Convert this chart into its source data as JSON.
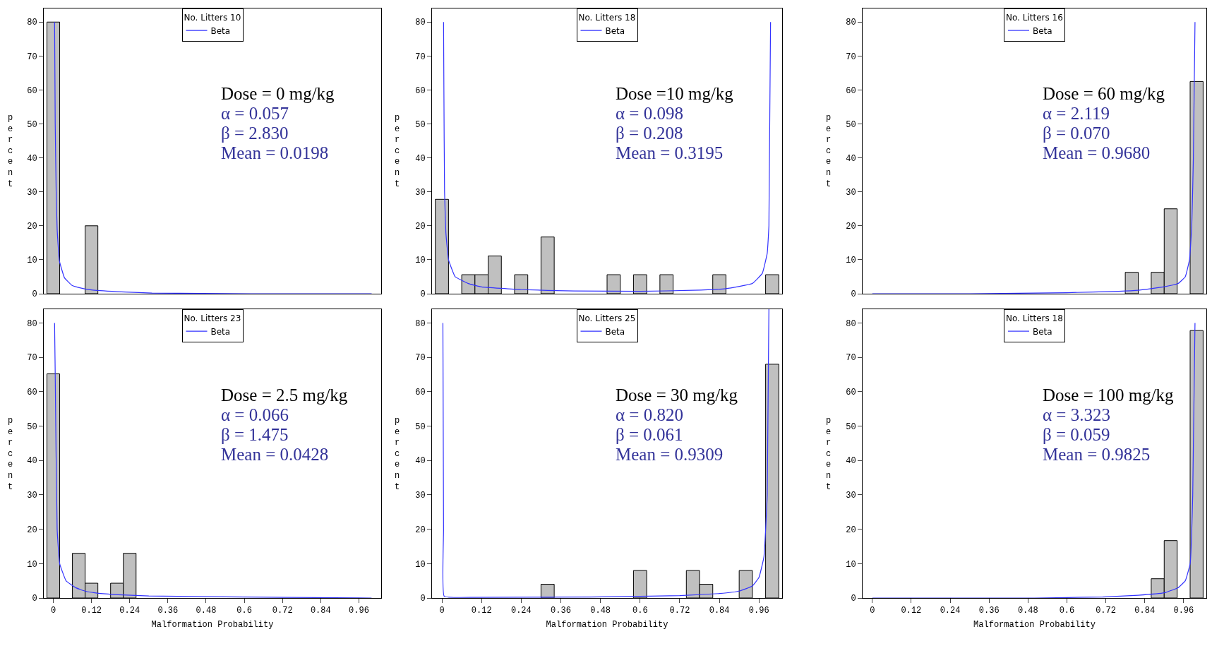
{
  "chart_data": [
    {
      "type": "histogram",
      "legend_title": "No. Litters 10",
      "legend": "top",
      "ylabel": "percent",
      "tick_labels": "y",
      "grid": false,
      "annotations": [
        "Dose = 0 mg/kg",
        "α = 0.057",
        "β = 2.830",
        "Mean = 0.0198"
      ],
      "bins": [
        -0.02,
        0.02,
        0.06,
        0.1,
        0.14,
        0.18,
        0.22,
        0.26,
        0.3,
        0.34,
        0.38,
        0.42,
        0.46,
        0.5,
        0.54,
        0.58,
        0.62,
        0.66,
        0.7,
        0.74,
        0.78,
        0.82,
        0.86,
        0.9,
        0.94,
        0.98,
        1.02
      ],
      "xlim": [
        -0.03,
        1.03
      ],
      "ylim": [
        0,
        84
      ],
      "yticks": [
        0,
        10,
        20,
        30,
        40,
        50,
        60,
        70,
        80
      ],
      "series": [
        {
          "type": "histogram",
          "color": "#c0c0c0",
          "values": [
            80,
            0,
            0,
            20,
            0,
            0,
            0,
            0,
            0,
            0,
            0,
            0,
            0,
            0,
            0,
            0,
            0,
            0,
            0,
            0,
            0,
            0,
            0,
            0,
            0,
            0
          ]
        },
        {
          "type": "line",
          "name": "Beta",
          "color": "#3333ff",
          "x": [
            0.004,
            0.006,
            0.009,
            0.012,
            0.019,
            0.035,
            0.058,
            0.081,
            0.12,
            0.2,
            0.31,
            0.47,
            0.62,
            0.8,
            1.0
          ],
          "values": [
            80,
            50,
            30,
            19,
            9.7,
            4.7,
            2.5,
            1.8,
            1.1,
            0.6,
            0.2,
            0.1,
            0,
            0,
            0
          ]
        }
      ]
    },
    {
      "type": "histogram",
      "legend_title": "No. Litters 18",
      "legend": "top",
      "ylabel": "percent",
      "tick_labels": "y",
      "grid": false,
      "annotations": [
        "Dose =10 mg/kg",
        "α = 0.098",
        "β = 0.208",
        "Mean = 0.3195"
      ],
      "bins": [
        -0.02,
        0.02,
        0.06,
        0.1,
        0.14,
        0.18,
        0.22,
        0.26,
        0.3,
        0.34,
        0.38,
        0.42,
        0.46,
        0.5,
        0.54,
        0.58,
        0.62,
        0.66,
        0.7,
        0.74,
        0.78,
        0.82,
        0.86,
        0.9,
        0.94,
        0.98,
        1.02
      ],
      "xlim": [
        -0.03,
        1.03
      ],
      "ylim": [
        0,
        84
      ],
      "yticks": [
        0,
        10,
        20,
        30,
        40,
        50,
        60,
        70,
        80
      ],
      "series": [
        {
          "type": "histogram",
          "color": "#c0c0c0",
          "values": [
            27.8,
            0,
            5.6,
            5.6,
            11.1,
            0,
            5.6,
            0,
            16.7,
            0,
            0,
            0,
            0,
            5.6,
            0,
            5.6,
            0,
            5.6,
            0,
            0,
            0,
            5.6,
            0,
            0,
            0,
            5.6
          ]
        },
        {
          "type": "line",
          "name": "Beta",
          "color": "#3333ff",
          "x": [
            0.005,
            0.006,
            0.008,
            0.012,
            0.02,
            0.04,
            0.08,
            0.12,
            0.24,
            0.4,
            0.6,
            0.76,
            0.86,
            0.94,
            0.97,
            0.985,
            0.99,
            0.995
          ],
          "values": [
            80,
            60,
            30,
            18,
            10,
            5,
            3,
            2,
            1.2,
            0.8,
            0.7,
            1,
            1.5,
            3,
            6,
            12,
            20,
            80
          ]
        }
      ]
    },
    {
      "type": "histogram",
      "legend_title": "No. Litters 16",
      "legend": "top",
      "ylabel": "percent",
      "tick_labels": "y",
      "grid": false,
      "annotations": [
        "Dose = 60 mg/kg",
        "α = 2.119",
        "β = 0.070",
        "Mean = 0.9680"
      ],
      "bins": [
        -0.02,
        0.02,
        0.06,
        0.1,
        0.14,
        0.18,
        0.22,
        0.26,
        0.3,
        0.34,
        0.38,
        0.42,
        0.46,
        0.5,
        0.54,
        0.58,
        0.62,
        0.66,
        0.7,
        0.74,
        0.78,
        0.82,
        0.86,
        0.9,
        0.94,
        0.98,
        1.02
      ],
      "xlim": [
        -0.03,
        1.03
      ],
      "ylim": [
        0,
        84
      ],
      "yticks": [
        0,
        10,
        20,
        30,
        40,
        50,
        60,
        70,
        80
      ],
      "series": [
        {
          "type": "histogram",
          "color": "#c0c0c0",
          "values": [
            0,
            0,
            0,
            0,
            0,
            0,
            0,
            0,
            0,
            0,
            0,
            0,
            0,
            0,
            0,
            0,
            0,
            0,
            0,
            0,
            6.3,
            0,
            6.3,
            25,
            0,
            62.5
          ]
        },
        {
          "type": "line",
          "name": "Beta",
          "color": "#3333ff",
          "x": [
            0,
            0.3,
            0.6,
            0.76,
            0.82,
            0.898,
            0.943,
            0.965,
            0.978,
            0.985,
            0.99,
            0.995
          ],
          "values": [
            0,
            0,
            0.3,
            0.7,
            1,
            2,
            3,
            5,
            10,
            20,
            40,
            80
          ]
        }
      ]
    },
    {
      "type": "histogram",
      "legend_title": "No. Litters 23",
      "legend": "top",
      "ylabel": "percent",
      "xlabel": "Malformation Probability",
      "grid": false,
      "annotations": [
        "Dose = 2.5 mg/kg",
        "α = 0.066",
        "β = 1.475",
        "Mean = 0.0428"
      ],
      "bins": [
        -0.02,
        0.02,
        0.06,
        0.1,
        0.14,
        0.18,
        0.22,
        0.26,
        0.3,
        0.34,
        0.38,
        0.42,
        0.46,
        0.5,
        0.54,
        0.58,
        0.62,
        0.66,
        0.7,
        0.74,
        0.78,
        0.82,
        0.86,
        0.9,
        0.94,
        0.98,
        1.02
      ],
      "xlim": [
        -0.03,
        1.03
      ],
      "xticks": [
        0,
        0.12,
        0.24,
        0.36,
        0.48,
        0.6,
        0.72,
        0.84,
        0.96
      ],
      "ylim": [
        0,
        84
      ],
      "yticks": [
        0,
        10,
        20,
        30,
        40,
        50,
        60,
        70,
        80
      ],
      "series": [
        {
          "type": "histogram",
          "color": "#c0c0c0",
          "values": [
            65.2,
            0,
            13,
            4.3,
            0,
            4.3,
            13,
            0,
            0,
            0,
            0,
            0,
            0,
            0,
            0,
            0,
            0,
            0,
            0,
            0,
            0,
            0,
            0,
            0,
            0,
            0
          ]
        },
        {
          "type": "line",
          "name": "Beta",
          "color": "#3333ff",
          "x": [
            0.004,
            0.006,
            0.012,
            0.02,
            0.04,
            0.07,
            0.1,
            0.13,
            0.19,
            0.3,
            0.48,
            0.72,
            1.0
          ],
          "values": [
            80,
            65,
            20,
            10,
            5,
            3,
            2,
            1.5,
            1,
            0.6,
            0.4,
            0.2,
            0
          ]
        }
      ]
    },
    {
      "type": "histogram",
      "legend_title": "No. Litters 25",
      "legend": "top",
      "ylabel": "percent",
      "xlabel": "Malformation Probability",
      "grid": false,
      "annotations": [
        "Dose = 30 mg/kg",
        "α = 0.820",
        "β = 0.061",
        "Mean = 0.9309"
      ],
      "bins": [
        -0.02,
        0.02,
        0.06,
        0.1,
        0.14,
        0.18,
        0.22,
        0.26,
        0.3,
        0.34,
        0.38,
        0.42,
        0.46,
        0.5,
        0.54,
        0.58,
        0.62,
        0.66,
        0.7,
        0.74,
        0.78,
        0.82,
        0.86,
        0.9,
        0.94,
        0.98,
        1.02
      ],
      "xlim": [
        -0.03,
        1.03
      ],
      "xticks": [
        0,
        0.12,
        0.24,
        0.36,
        0.48,
        0.6,
        0.72,
        0.84,
        0.96
      ],
      "ylim": [
        0,
        84
      ],
      "yticks": [
        0,
        10,
        20,
        30,
        40,
        50,
        60,
        70,
        80
      ],
      "series": [
        {
          "type": "histogram",
          "color": "#c0c0c0",
          "values": [
            0,
            0,
            0,
            0,
            0,
            0,
            0,
            0,
            4,
            0,
            0,
            0,
            0,
            0,
            0,
            8,
            0,
            0,
            0,
            8,
            4,
            0,
            0,
            8,
            0,
            68
          ]
        },
        {
          "type": "line",
          "name": "Beta",
          "color": "#3333ff",
          "x": [
            0.003,
            0.005,
            0.007,
            0.1,
            0.45,
            0.6,
            0.72,
            0.84,
            0.9,
            0.94,
            0.96,
            0.975,
            0.985,
            0.99
          ],
          "values": [
            80,
            20,
            0.5,
            0.2,
            0.3,
            0.5,
            0.7,
            1.3,
            2,
            3.5,
            6,
            12,
            30,
            84
          ]
        }
      ]
    },
    {
      "type": "histogram",
      "legend_title": "No. Litters 18",
      "legend": "top",
      "ylabel": "percent",
      "xlabel": "Malformation Probability",
      "grid": false,
      "annotations": [
        "Dose = 100 mg/kg",
        "α = 3.323",
        "β = 0.059",
        "Mean = 0.9825"
      ],
      "bins": [
        -0.02,
        0.02,
        0.06,
        0.1,
        0.14,
        0.18,
        0.22,
        0.26,
        0.3,
        0.34,
        0.38,
        0.42,
        0.46,
        0.5,
        0.54,
        0.58,
        0.62,
        0.66,
        0.7,
        0.74,
        0.78,
        0.82,
        0.86,
        0.9,
        0.94,
        0.98,
        1.02
      ],
      "xlim": [
        -0.03,
        1.03
      ],
      "xticks": [
        0,
        0.12,
        0.24,
        0.36,
        0.48,
        0.6,
        0.72,
        0.84,
        0.96
      ],
      "ylim": [
        0,
        84
      ],
      "yticks": [
        0,
        10,
        20,
        30,
        40,
        50,
        60,
        70,
        80
      ],
      "series": [
        {
          "type": "histogram",
          "color": "#c0c0c0",
          "values": [
            0,
            0,
            0,
            0,
            0,
            0,
            0,
            0,
            0,
            0,
            0,
            0,
            0,
            0,
            0,
            0,
            0,
            0,
            0,
            0,
            0,
            0,
            5.6,
            16.7,
            0,
            77.8
          ]
        },
        {
          "type": "line",
          "name": "Beta",
          "color": "#3333ff",
          "x": [
            0,
            0.5,
            0.71,
            0.82,
            0.9,
            0.943,
            0.965,
            0.98,
            0.988,
            0.995
          ],
          "values": [
            0,
            0,
            0.3,
            0.8,
            1.5,
            3,
            5,
            10,
            30,
            80
          ]
        }
      ]
    }
  ]
}
